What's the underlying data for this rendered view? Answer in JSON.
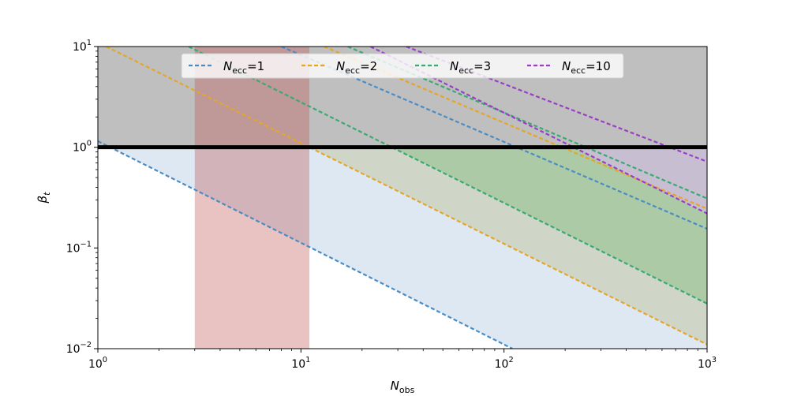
{
  "chart_data": {
    "type": "line",
    "xscale": "log",
    "yscale": "log",
    "xlim": [
      1,
      1000
    ],
    "ylim": [
      0.01,
      10
    ],
    "xlabel_main": "N",
    "xlabel_sub": "obs",
    "ylabel_main": "β",
    "ylabel_sub": "t",
    "x_ticks": [
      {
        "value": 1,
        "base": "10",
        "exp": "0"
      },
      {
        "value": 10,
        "base": "10",
        "exp": "1"
      },
      {
        "value": 100,
        "base": "10",
        "exp": "2"
      },
      {
        "value": 1000,
        "base": "10",
        "exp": "3"
      }
    ],
    "y_ticks": [
      {
        "value": 0.01,
        "base": "10",
        "exp": "−2"
      },
      {
        "value": 0.1,
        "base": "10",
        "exp": "−1"
      },
      {
        "value": 1,
        "base": "10",
        "exp": "0"
      },
      {
        "value": 10,
        "base": "10",
        "exp": "1"
      }
    ],
    "legend_position": "top-center",
    "series": [
      {
        "name_main": "N",
        "name_sub": "ecc",
        "name_rest": "=1",
        "color": "#4a8cc4",
        "lines": [
          {
            "x": [
              1,
              110
            ],
            "y": [
              1.15,
              0.01
            ]
          },
          {
            "x": [
              8,
              1000
            ],
            "y": [
              10,
              0.155
            ]
          }
        ],
        "band": {
          "lower": {
            "x": [
              1,
              110
            ],
            "y": [
              1.15,
              0.01
            ]
          },
          "lower_extend_to": 1000,
          "upper": {
            "x": [
              1,
              1000
            ],
            "y": [
              1,
              1
            ]
          },
          "fill": "#dde8f3",
          "opacity": 1
        }
      },
      {
        "name_main": "N",
        "name_sub": "ecc",
        "name_rest": "=2",
        "color": "#e4a62a",
        "lines": [
          {
            "x": [
              1.1,
              1000
            ],
            "y": [
              10,
              0.011
            ]
          },
          {
            "x": [
              13,
              1000
            ],
            "y": [
              10,
              0.245
            ]
          }
        ],
        "band": {
          "lower": {
            "x": [
              1.1,
              1000
            ],
            "y": [
              10,
              0.011
            ]
          },
          "upper": {
            "x": [
              1,
              1000
            ],
            "y": [
              1,
              1
            ]
          },
          "fill": "#b3ad64",
          "opacity": 0.3
        }
      },
      {
        "name_main": "N",
        "name_sub": "ecc",
        "name_rest": "=3",
        "color": "#3aaa72",
        "lines": [
          {
            "x": [
              2.8,
              1000
            ],
            "y": [
              10,
              0.028
            ]
          },
          {
            "x": [
              17,
              1000
            ],
            "y": [
              10,
              0.31
            ]
          }
        ],
        "band": {
          "lower": {
            "x": [
              2.8,
              1000
            ],
            "y": [
              10,
              0.028
            ]
          },
          "upper": {
            "x": [
              1,
              1000
            ],
            "y": [
              1,
              1
            ]
          },
          "fill": "#5caf5a",
          "opacity": 0.3
        }
      },
      {
        "name_main": "N",
        "name_sub": "ecc",
        "name_rest": "=10",
        "color": "#9a3ec8",
        "lines": [
          {
            "x": [
              22,
              1000
            ],
            "y": [
              10,
              0.22
            ]
          },
          {
            "x": [
              33,
              1000
            ],
            "y": [
              10,
              0.72
            ]
          }
        ],
        "band": {
          "lower": {
            "x": [
              22,
              1000
            ],
            "y": [
              10,
              0.22
            ]
          },
          "upper": {
            "x": [
              1,
              1000
            ],
            "y": [
              1,
              1
            ]
          },
          "fill": "#d9b8ee",
          "opacity": 0.6
        }
      }
    ],
    "shaded_regions": [
      {
        "kind": "hspan",
        "y": [
          1,
          10
        ],
        "color": "#808080",
        "opacity": 0.5
      },
      {
        "kind": "vspan",
        "x": [
          3,
          11
        ],
        "color": "#c05050",
        "opacity": 0.35
      }
    ],
    "hline": {
      "y": 1,
      "color": "#000000"
    },
    "grid": false
  }
}
